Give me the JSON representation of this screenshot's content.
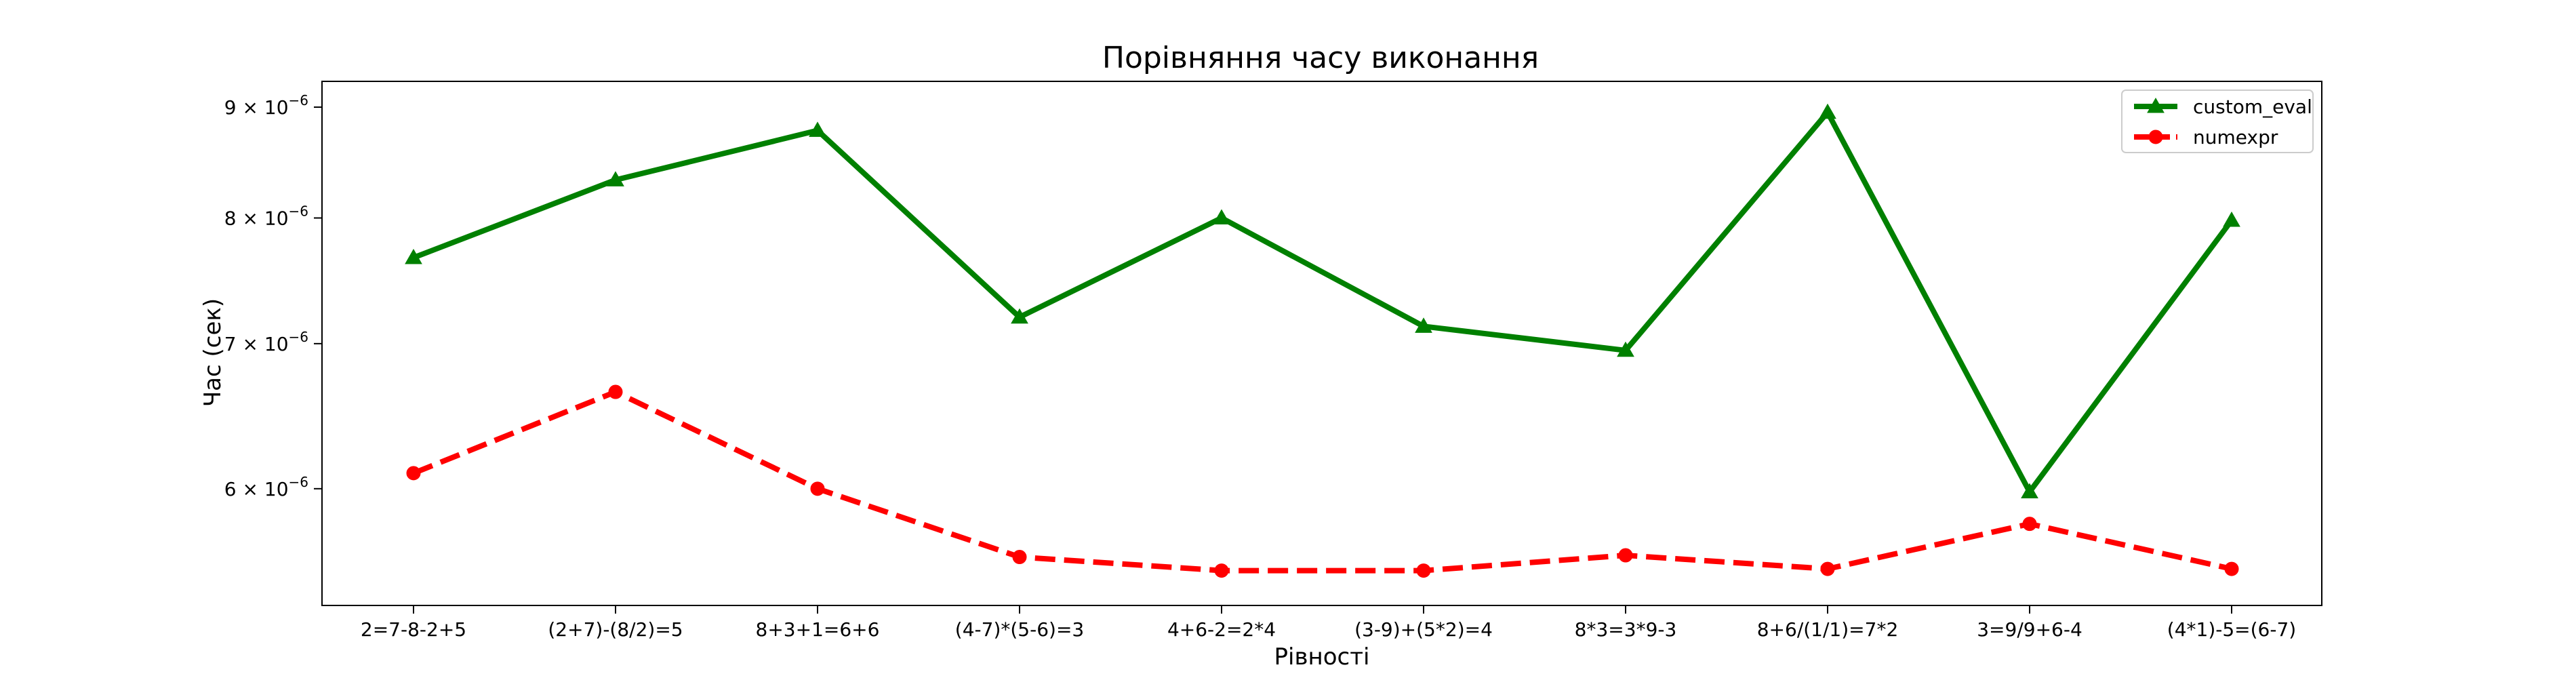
{
  "chart_data": {
    "type": "line",
    "title": "Порівняння часу виконання",
    "xlabel": "Рівності",
    "ylabel": "Час (сек)",
    "y_scale": "log",
    "ylim": [
      5.3e-06,
      9.25e-06
    ],
    "y_ticks": [
      {
        "value": 6e-06,
        "label_mantissa": "6",
        "label_exponent": "−6"
      },
      {
        "value": 7e-06,
        "label_mantissa": "7",
        "label_exponent": "−6"
      },
      {
        "value": 8e-06,
        "label_mantissa": "8",
        "label_exponent": "−6"
      },
      {
        "value": 9e-06,
        "label_mantissa": "9",
        "label_exponent": "−6"
      }
    ],
    "y_tick_base": "× 10",
    "categories": [
      "2=7-8-2+5",
      "(2+7)-(8/2)=5",
      "8+3+1=6+6",
      "(4-7)*(5-6)=3",
      "4+6-2=2*4",
      "(3-9)+(5*2)=4",
      "8*3=3*9-3",
      "8+6/(1/1)=7*2",
      "3=9/9+6-4",
      "(4*1)-5=(6-7)"
    ],
    "series": [
      {
        "name": "custom_eval",
        "color": "#008000",
        "line_style": "solid",
        "marker": "triangle",
        "values": [
          7.67e-06,
          8.33e-06,
          8.78e-06,
          7.2e-06,
          8e-06,
          7.13e-06,
          6.95e-06,
          8.95e-06,
          5.98e-06,
          7.98e-06
        ]
      },
      {
        "name": "numexpr",
        "color": "#ff0000",
        "line_style": "dashed",
        "marker": "circle",
        "values": [
          6.1e-06,
          6.65e-06,
          6e-06,
          5.58e-06,
          5.5e-06,
          5.5e-06,
          5.59e-06,
          5.51e-06,
          5.78e-06,
          5.51e-06
        ]
      }
    ],
    "legend_position": "top-right",
    "grid": false
  }
}
